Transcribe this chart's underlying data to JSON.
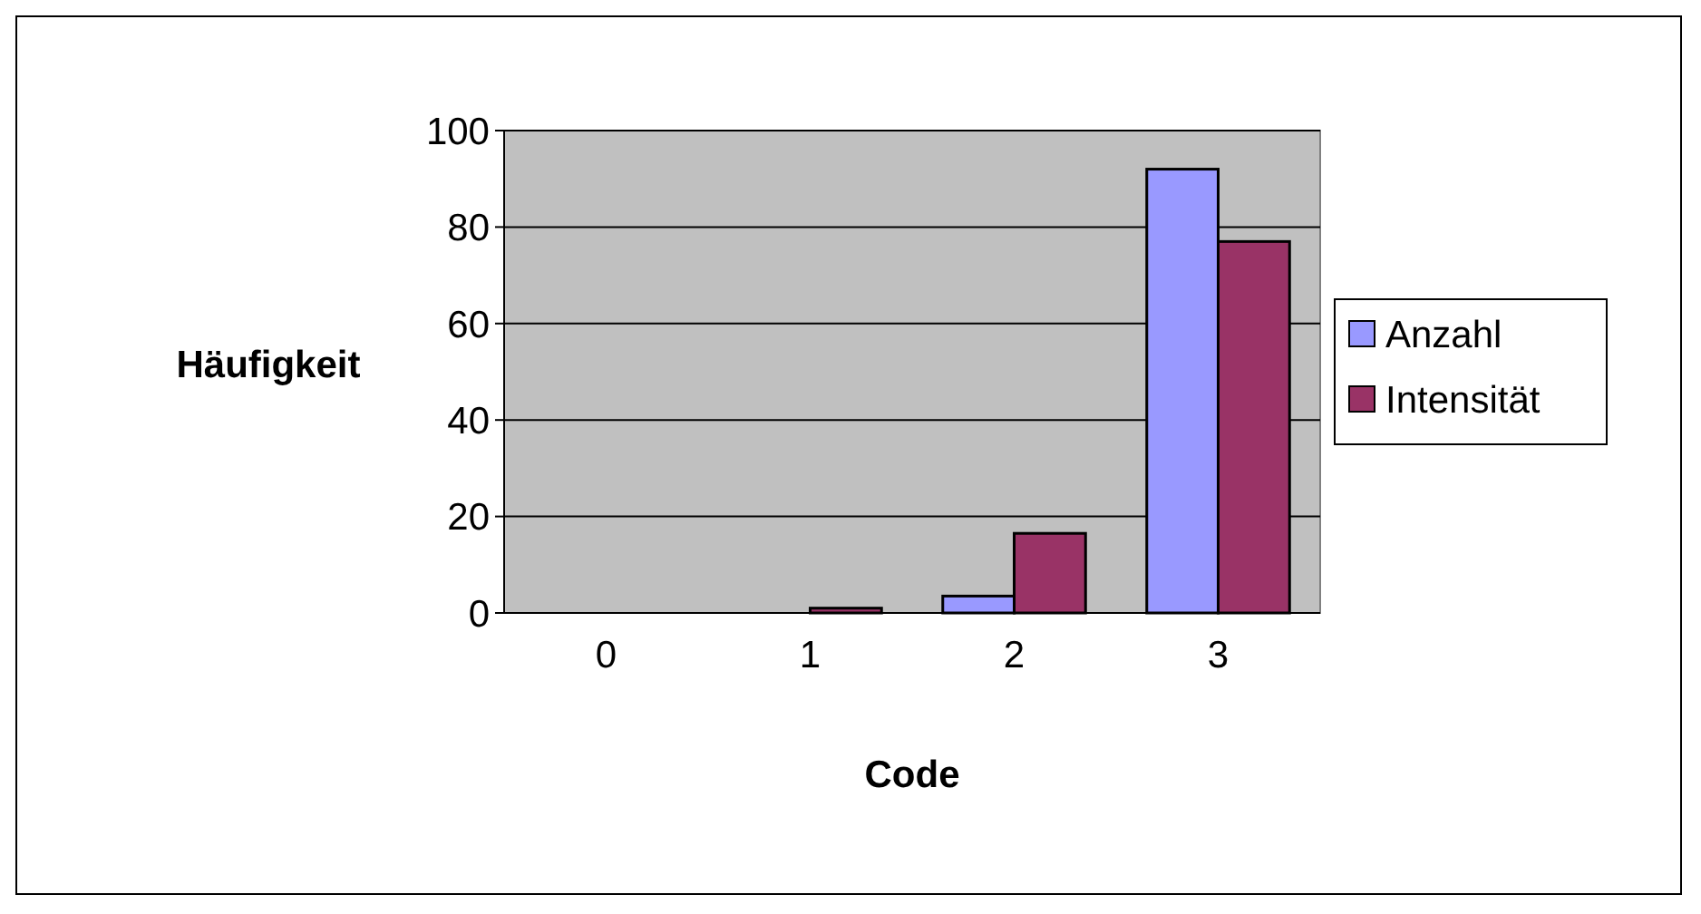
{
  "chart_data": {
    "type": "bar",
    "xlabel": "Code",
    "ylabel": "Häufigkeit",
    "categories": [
      "0",
      "1",
      "2",
      "3"
    ],
    "series": [
      {
        "name": "Anzahl",
        "color": "#9999ff",
        "values": [
          0,
          0,
          3.5,
          92
        ]
      },
      {
        "name": "Intensität",
        "color": "#993366",
        "values": [
          0,
          1,
          16.5,
          77
        ]
      }
    ],
    "ylim": [
      0,
      100
    ],
    "yticks": [
      0,
      20,
      40,
      60,
      80,
      100
    ],
    "grid": "y",
    "legend": "right"
  }
}
